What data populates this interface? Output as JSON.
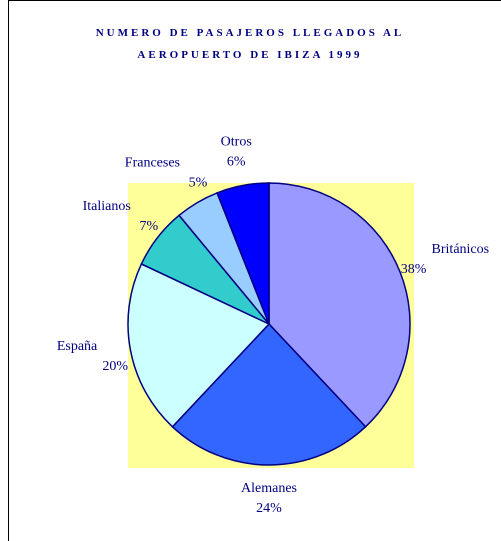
{
  "chart_data": {
    "type": "pie",
    "title": "NUMERO DE PASAJEROS LLEGADOS AL AEROPUERTO DE IBIZA 1999",
    "categories": [
      "Británicos",
      "Alemanes",
      "España",
      "Italianos",
      "Franceses",
      "Otros"
    ],
    "values": [
      38,
      24,
      20,
      7,
      5,
      6
    ],
    "value_labels": [
      "38%",
      "24%",
      "20%",
      "7%",
      "5%",
      "6%"
    ],
    "colors": [
      "#9999ff",
      "#3366ff",
      "#ccffff",
      "#33cccc",
      "#99ccff",
      "#0000ff"
    ],
    "plot_background": "#ffff99"
  }
}
